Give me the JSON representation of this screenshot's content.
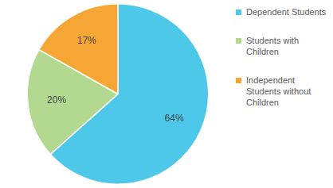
{
  "chart_data": {
    "type": "pie",
    "categories": [
      "Dependent Students",
      "Students with Children",
      "Independent Students without Children"
    ],
    "values": [
      64,
      20,
      17
    ],
    "value_labels": [
      "64%",
      "20%",
      "17%"
    ],
    "colors": [
      "#4ec8e8",
      "#b3d88f",
      "#f6a634"
    ],
    "legend": "right",
    "data_labels": true
  }
}
